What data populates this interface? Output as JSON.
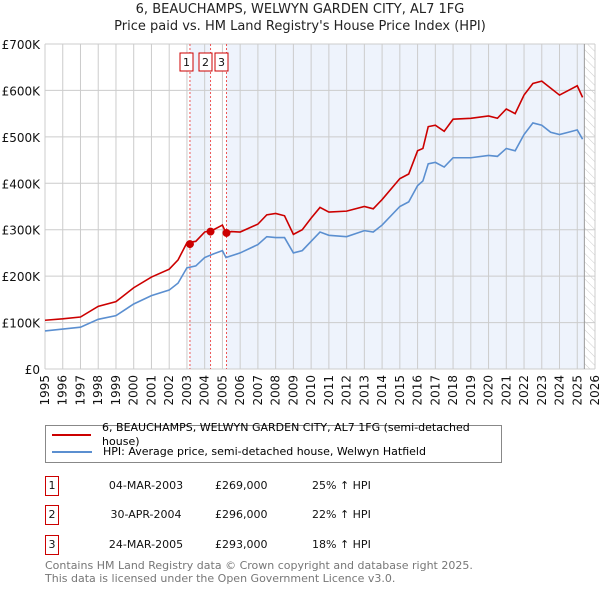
{
  "chart_data": {
    "type": "line",
    "title": "6, BEAUCHAMPS, WELWYN GARDEN CITY, AL7 1FG",
    "subtitle": "Price paid vs. HM Land Registry's House Price Index (HPI)",
    "xlim": [
      1995,
      2026
    ],
    "ylim": [
      0,
      700000
    ],
    "y_ticks": [
      {
        "v": 0,
        "label": "£0"
      },
      {
        "v": 100000,
        "label": "£100K"
      },
      {
        "v": 200000,
        "label": "£200K"
      },
      {
        "v": 300000,
        "label": "£300K"
      },
      {
        "v": 400000,
        "label": "£400K"
      },
      {
        "v": 500000,
        "label": "£500K"
      },
      {
        "v": 600000,
        "label": "£600K"
      },
      {
        "v": 700000,
        "label": "£700K"
      }
    ],
    "x_ticks": [
      "1995",
      "1996",
      "1997",
      "1998",
      "1999",
      "2000",
      "2001",
      "2002",
      "2003",
      "2004",
      "2005",
      "2006",
      "2007",
      "2008",
      "2009",
      "2010",
      "2011",
      "2012",
      "2013",
      "2014",
      "2015",
      "2016",
      "2017",
      "2018",
      "2019",
      "2020",
      "2021",
      "2022",
      "2023",
      "2024",
      "2025",
      "2026"
    ],
    "grid": true,
    "series": [
      {
        "name": "6, BEAUCHAMPS, WELWYN GARDEN CITY, AL7 1FG (semi-detached house)",
        "color": "#cc0000",
        "x": [
          1995,
          1996,
          1997,
          1998,
          1999,
          2000,
          2001,
          2002,
          2002.5,
          2003,
          2003.5,
          2004,
          2004.5,
          2005,
          2005.2,
          2005.5,
          2006,
          2007,
          2007.5,
          2008,
          2008.5,
          2009,
          2009.5,
          2010,
          2010.5,
          2011,
          2012,
          2013,
          2013.5,
          2014,
          2015,
          2015.5,
          2016,
          2016.3,
          2016.6,
          2017,
          2017.5,
          2018,
          2019,
          2020,
          2020.5,
          2021,
          2021.5,
          2022,
          2022.5,
          2023,
          2023.5,
          2024,
          2024.5,
          2025,
          2025.3
        ],
        "y": [
          105000,
          108000,
          112000,
          135000,
          145000,
          175000,
          198000,
          215000,
          235000,
          272000,
          275000,
          295000,
          300000,
          310000,
          293000,
          296000,
          295000,
          312000,
          332000,
          335000,
          330000,
          290000,
          300000,
          325000,
          348000,
          338000,
          340000,
          350000,
          345000,
          365000,
          410000,
          420000,
          470000,
          475000,
          522000,
          525000,
          512000,
          538000,
          540000,
          545000,
          540000,
          560000,
          550000,
          590000,
          615000,
          620000,
          605000,
          590000,
          600000,
          610000,
          585000
        ]
      },
      {
        "name": "HPI: Average price, semi-detached house, Welwyn Hatfield",
        "color": "#5b8fd0",
        "x": [
          1995,
          1996,
          1997,
          1998,
          1999,
          2000,
          2001,
          2002,
          2002.5,
          2003,
          2003.5,
          2004,
          2004.5,
          2005,
          2005.2,
          2006,
          2007,
          2007.5,
          2008,
          2008.5,
          2009,
          2009.5,
          2010,
          2010.5,
          2011,
          2012,
          2013,
          2013.5,
          2014,
          2015,
          2015.5,
          2016,
          2016.3,
          2016.6,
          2017,
          2017.5,
          2018,
          2019,
          2020,
          2020.5,
          2021,
          2021.5,
          2022,
          2022.5,
          2023,
          2023.5,
          2024,
          2024.5,
          2025,
          2025.3
        ],
        "y": [
          82000,
          86000,
          90000,
          107000,
          115000,
          140000,
          158000,
          170000,
          185000,
          218000,
          222000,
          240000,
          248000,
          255000,
          240000,
          250000,
          268000,
          285000,
          283000,
          283000,
          250000,
          255000,
          275000,
          295000,
          288000,
          285000,
          298000,
          295000,
          310000,
          350000,
          360000,
          395000,
          405000,
          442000,
          445000,
          435000,
          455000,
          455000,
          460000,
          458000,
          475000,
          470000,
          505000,
          530000,
          525000,
          510000,
          505000,
          510000,
          515000,
          495000
        ]
      }
    ],
    "sales": [
      {
        "n": "1",
        "x": 2003.17,
        "y": 269000
      },
      {
        "n": "2",
        "x": 2004.33,
        "y": 296000
      },
      {
        "n": "3",
        "x": 2005.23,
        "y": 293000
      }
    ],
    "data_end": 2025.4,
    "legend_placement": "below"
  },
  "sales_table": [
    {
      "n": "1",
      "date": "04-MAR-2003",
      "price": "£269,000",
      "hpi": "25% ↑ HPI"
    },
    {
      "n": "2",
      "date": "30-APR-2004",
      "price": "£296,000",
      "hpi": "22% ↑ HPI"
    },
    {
      "n": "3",
      "date": "24-MAR-2005",
      "price": "£293,000",
      "hpi": "18% ↑ HPI"
    }
  ],
  "footer": {
    "line1": "Contains HM Land Registry data © Crown copyright and database right 2025.",
    "line2": "This data is licensed under the Open Government Licence v3.0."
  }
}
